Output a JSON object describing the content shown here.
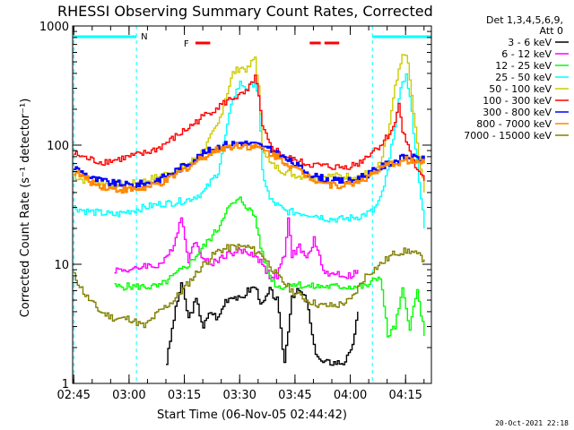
{
  "chart_data": {
    "type": "line",
    "title": "RHESSI Observing Summary Count Rates, Corrected",
    "xlabel": "Start Time (06-Nov-05 02:44:42)",
    "ylabel": "Corrected Count Rate (s⁻¹ detector⁻¹)",
    "ylim": [
      1,
      1000
    ],
    "yscale": "log",
    "xlim": [
      "02:44:42",
      "04:22:00"
    ],
    "x_ticks": [
      "02:45",
      "03:00",
      "03:15",
      "03:30",
      "03:45",
      "04:00",
      "04:15"
    ],
    "y_ticks": [
      "1",
      "10",
      "100",
      "1000"
    ],
    "grid": false,
    "legend_header": [
      "Det 1,3,4,5,6,9,",
      "Att 0"
    ],
    "legend_position": "right",
    "annotations": {
      "night_flag": "N",
      "flare_flag": "F"
    },
    "series": [
      {
        "name": "3 - 6 keV",
        "color": "#000000",
        "x": [
          "03:10",
          "03:12",
          "03:14",
          "03:16",
          "03:18",
          "03:20",
          "03:22",
          "03:24",
          "03:26",
          "03:28",
          "03:30",
          "03:32",
          "03:34",
          "03:36",
          "03:38",
          "03:40",
          "03:42",
          "03:44",
          "03:46",
          "03:48",
          "03:50",
          "03:52",
          "03:54",
          "03:56",
          "03:58",
          "04:00",
          "04:02"
        ],
        "values": [
          1.5,
          3.5,
          7,
          3.5,
          5,
          3,
          4,
          3.5,
          5,
          5.5,
          5,
          6,
          6.5,
          4.5,
          6,
          5,
          1.5,
          5.5,
          6,
          5,
          2,
          1.5,
          1.5,
          1.5,
          1.5,
          1.8,
          4
        ]
      },
      {
        "name": "6 - 12 keV",
        "color": "#ff00ff",
        "x": [
          "02:56",
          "02:58",
          "03:00",
          "03:02",
          "03:04",
          "03:06",
          "03:08",
          "03:10",
          "03:12",
          "03:14",
          "03:16",
          "03:18",
          "03:20",
          "03:22",
          "03:24",
          "03:26",
          "03:28",
          "03:30",
          "03:32",
          "03:34",
          "03:36",
          "03:38",
          "03:40",
          "03:42",
          "03:43",
          "03:44",
          "03:46",
          "03:48",
          "03:50",
          "03:52",
          "03:54",
          "03:56",
          "03:58",
          "04:00",
          "04:02"
        ],
        "values": [
          9,
          9,
          9,
          9,
          10,
          9.5,
          10,
          11,
          15,
          25,
          11,
          16,
          11,
          10,
          11,
          12,
          12.5,
          13,
          12.5,
          12,
          10,
          8,
          8,
          12,
          23,
          12,
          14,
          11,
          16,
          10,
          8,
          8.5,
          8,
          8,
          9
        ]
      },
      {
        "name": "12 - 25 keV",
        "color": "#00ff00",
        "x": [
          "02:56",
          "03:00",
          "03:04",
          "03:08",
          "03:12",
          "03:16",
          "03:20",
          "03:24",
          "03:26",
          "03:28",
          "03:30",
          "03:32",
          "03:34",
          "03:36",
          "03:38",
          "03:40",
          "03:42",
          "03:44",
          "03:48",
          "03:52",
          "03:56",
          "04:00",
          "04:04",
          "04:08",
          "04:10",
          "04:12",
          "04:14",
          "04:16",
          "04:18",
          "04:20"
        ],
        "values": [
          6.5,
          6.5,
          6.5,
          6.5,
          8,
          10,
          14,
          20,
          28,
          32,
          35,
          30,
          25,
          12,
          8,
          6.5,
          6.5,
          7,
          6.5,
          6.5,
          6.5,
          6.5,
          6.5,
          8,
          2.5,
          3,
          6,
          3,
          6,
          2.5
        ]
      },
      {
        "name": "25 - 50 keV",
        "color": "#00ffff",
        "x": [
          "02:45",
          "02:48",
          "02:52",
          "02:56",
          "03:00",
          "03:04",
          "03:08",
          "03:12",
          "03:16",
          "03:20",
          "03:24",
          "03:26",
          "03:28",
          "03:30",
          "03:32",
          "03:34",
          "03:35",
          "03:36",
          "03:38",
          "03:42",
          "03:46",
          "03:50",
          "03:54",
          "03:58",
          "04:02",
          "04:06",
          "04:08",
          "04:10",
          "04:12",
          "04:14",
          "04:15",
          "04:16",
          "04:18",
          "04:20"
        ],
        "values": [
          30,
          28,
          27,
          26,
          28,
          30,
          32,
          33,
          35,
          40,
          60,
          120,
          250,
          330,
          300,
          340,
          250,
          60,
          35,
          28,
          27,
          26,
          24,
          24,
          25,
          28,
          35,
          60,
          150,
          350,
          380,
          250,
          70,
          20
        ]
      },
      {
        "name": "50 - 100 keV",
        "color": "#cccc00",
        "x": [
          "02:45",
          "02:48",
          "02:52",
          "02:56",
          "03:00",
          "03:04",
          "03:08",
          "03:12",
          "03:16",
          "03:20",
          "03:24",
          "03:26",
          "03:28",
          "03:30",
          "03:32",
          "03:34",
          "03:35",
          "03:36",
          "03:38",
          "03:42",
          "03:46",
          "03:50",
          "03:54",
          "03:58",
          "04:02",
          "04:06",
          "04:08",
          "04:10",
          "04:12",
          "04:14",
          "04:15",
          "04:16",
          "04:18",
          "04:20"
        ],
        "values": [
          55,
          50,
          48,
          47,
          47,
          50,
          55,
          60,
          70,
          90,
          150,
          250,
          400,
          450,
          430,
          550,
          300,
          100,
          70,
          60,
          55,
          55,
          55,
          55,
          55,
          60,
          70,
          120,
          300,
          550,
          600,
          350,
          100,
          40
        ]
      },
      {
        "name": "100 - 300 keV",
        "color": "#ff0000",
        "x": [
          "02:45",
          "02:48",
          "02:52",
          "02:56",
          "03:00",
          "03:04",
          "03:08",
          "03:12",
          "03:16",
          "03:20",
          "03:24",
          "03:28",
          "03:30",
          "03:32",
          "03:34",
          "03:35",
          "03:36",
          "03:38",
          "03:42",
          "03:46",
          "03:50",
          "03:54",
          "03:58",
          "04:02",
          "04:06",
          "04:08",
          "04:10",
          "04:12",
          "04:13",
          "04:14",
          "04:16",
          "04:18",
          "04:20"
        ],
        "values": [
          85,
          78,
          72,
          75,
          80,
          85,
          95,
          115,
          140,
          175,
          210,
          250,
          260,
          280,
          380,
          250,
          140,
          100,
          80,
          72,
          68,
          66,
          65,
          70,
          90,
          100,
          120,
          150,
          240,
          130,
          90,
          60,
          50
        ]
      },
      {
        "name": "300 - 800 keV",
        "color": "#0000ff",
        "x": [
          "02:45",
          "02:50",
          "02:55",
          "03:00",
          "03:05",
          "03:10",
          "03:15",
          "03:20",
          "03:25",
          "03:30",
          "03:35",
          "03:40",
          "03:45",
          "03:50",
          "03:55",
          "04:00",
          "04:05",
          "04:10",
          "04:15",
          "04:20"
        ],
        "values": [
          65,
          52,
          48,
          46,
          48,
          55,
          68,
          85,
          100,
          105,
          100,
          85,
          68,
          55,
          50,
          50,
          58,
          70,
          80,
          75
        ]
      },
      {
        "name": "800 - 7000 keV",
        "color": "#ff8800",
        "x": [
          "02:45",
          "02:50",
          "02:55",
          "03:00",
          "03:05",
          "03:10",
          "03:15",
          "03:20",
          "03:25",
          "03:30",
          "03:35",
          "03:40",
          "03:45",
          "03:50",
          "03:55",
          "04:00",
          "04:05",
          "04:10",
          "04:15",
          "04:20"
        ],
        "values": [
          60,
          48,
          43,
          42,
          44,
          50,
          63,
          80,
          95,
          100,
          95,
          80,
          63,
          52,
          46,
          47,
          55,
          68,
          75,
          70
        ]
      },
      {
        "name": "7000 - 15000 keV",
        "color": "#808000",
        "x": [
          "02:45",
          "02:48",
          "02:52",
          "02:56",
          "03:00",
          "03:04",
          "03:08",
          "03:12",
          "03:16",
          "03:20",
          "03:24",
          "03:28",
          "03:32",
          "03:36",
          "03:40",
          "03:44",
          "03:48",
          "03:52",
          "03:56",
          "04:00",
          "04:04",
          "04:08",
          "04:12",
          "04:16",
          "04:20"
        ],
        "values": [
          8,
          5.5,
          4,
          3.5,
          3.5,
          3,
          4,
          5,
          7,
          10,
          13,
          14,
          14,
          12,
          8,
          6,
          5,
          4.5,
          4.5,
          5,
          8,
          10,
          12.5,
          13,
          11
        ]
      }
    ]
  },
  "flags": {
    "night": [
      [
        "02:45",
        "03:02"
      ],
      [
        "04:06",
        "04:22"
      ]
    ],
    "flare": [
      [
        "03:18",
        "03:22"
      ],
      [
        "03:49",
        "03:52"
      ],
      [
        "03:53",
        "03:57"
      ]
    ]
  },
  "footer": {
    "date_stamp": "20-Oct-2021 22:18"
  }
}
